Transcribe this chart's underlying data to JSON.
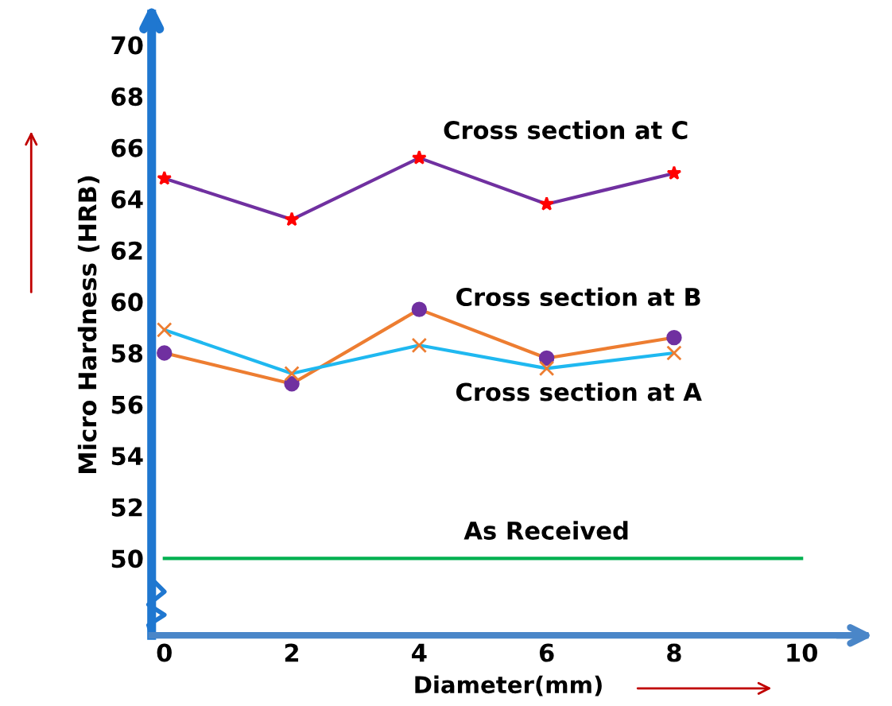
{
  "chart_data": {
    "type": "line",
    "xlabel": "Diameter(mm)",
    "ylabel": "Micro Hardness (HRB)",
    "x": [
      0,
      2,
      4,
      6,
      8
    ],
    "xlim": [
      -0.2,
      11
    ],
    "ylim": [
      47,
      71.2
    ],
    "xticks": [
      0,
      2,
      4,
      6,
      8,
      10
    ],
    "yticks": [
      50,
      52,
      54,
      56,
      58,
      60,
      62,
      64,
      66,
      68,
      70
    ],
    "grid": false,
    "legend": false,
    "series": [
      {
        "name": "Cross section at C",
        "color": "#7030a0",
        "marker": "star",
        "values": [
          64.8,
          63.2,
          65.6,
          63.8,
          65.0
        ]
      },
      {
        "name": "Cross section at B",
        "color": "#ed7d31",
        "marker": "circle",
        "values": [
          58.0,
          56.8,
          59.7,
          57.8,
          58.6
        ]
      },
      {
        "name": "Cross section at A",
        "color": "#1fb8f0",
        "marker": "cross",
        "values": [
          58.9,
          57.2,
          58.3,
          57.4,
          58.0
        ]
      },
      {
        "name": "As Received",
        "color": "#00b050",
        "marker": "none",
        "x": [
          0,
          10
        ],
        "values": [
          50,
          50
        ]
      }
    ]
  }
}
